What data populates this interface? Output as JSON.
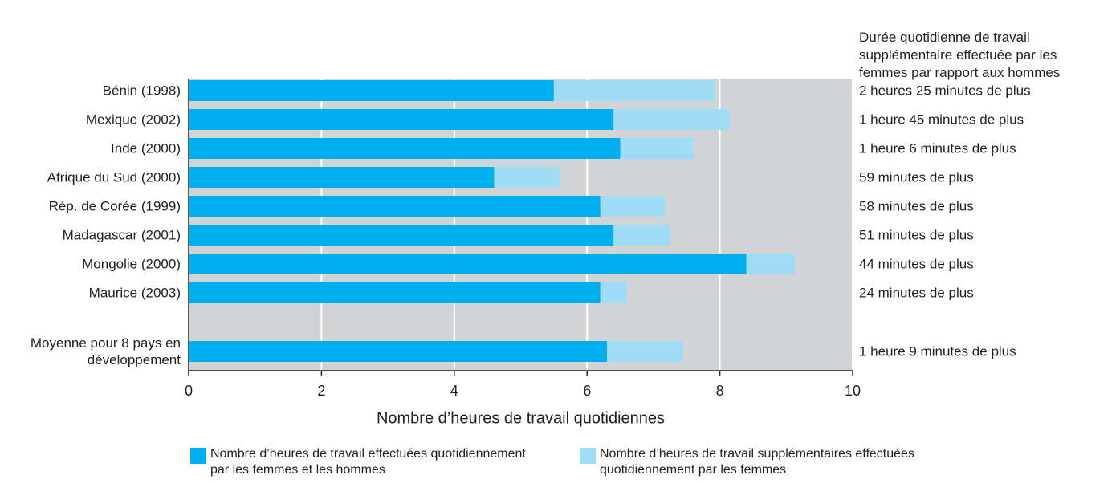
{
  "chart_data": {
    "type": "stacked_bar_horizontal",
    "categories": [
      "Bénin (1998)",
      "Mexique (2002)",
      "Inde (2000)",
      "Afrique du Sud (2000)",
      "Rép. de Corée (1999)",
      "Madagascar (2001)",
      "Mongolie (2000)",
      "Maurice (2003)",
      "Moyenne pour 8 pays en développement"
    ],
    "series": [
      {
        "name": "Nombre d’heures de travail effectuées quotidiennement par les femmes et les hommes",
        "color": "#00aeef",
        "values": [
          5.5,
          6.4,
          6.5,
          4.6,
          6.2,
          6.4,
          8.4,
          6.2,
          6.3
        ]
      },
      {
        "name": "Nombre d’heures de travail supplémentaires effectuées quotidiennement par les femmes",
        "color": "#a0dcf6",
        "values": [
          2.42,
          1.75,
          1.1,
          0.98,
          0.97,
          0.85,
          0.73,
          0.4,
          1.15
        ]
      }
    ],
    "annotation_title": "Durée quotidienne de travail supplémentaire effectuée par les femmes par rapport aux hommes",
    "annotations": [
      "2 heures 25 minutes de plus",
      "1 heure 45 minutes de plus",
      "1 heure 6 minutes de plus",
      "59 minutes de plus",
      "58 minutes de plus",
      "51 minutes de plus",
      "44 minutes de plus",
      "24 minutes de plus",
      "1 heure 9 minutes de plus"
    ],
    "xlabel": "Nombre d’heures de travail quotidiennes",
    "xlim": [
      0,
      10
    ],
    "xticks": [
      0,
      2,
      4,
      6,
      8,
      10
    ],
    "grid": true
  }
}
